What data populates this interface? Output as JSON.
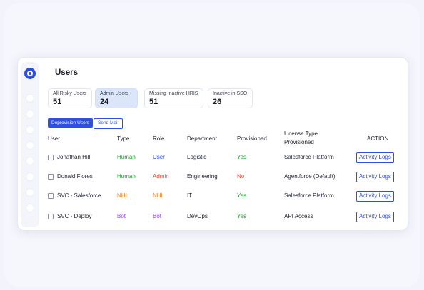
{
  "page": {
    "title": "Users"
  },
  "stats": [
    {
      "label": "All Risky Users",
      "value": "51"
    },
    {
      "label": "Admin Users",
      "value": "24"
    },
    {
      "label": "Missing Inactive HRIS",
      "value": "51"
    },
    {
      "label": "Inactive in SSO",
      "value": "26"
    }
  ],
  "actions": {
    "deprovision": "Deprovision Users",
    "send_mail": "Send Mail"
  },
  "table": {
    "headers": {
      "user": "User",
      "type": "Type",
      "role": "Role",
      "department": "Department",
      "provisioned": "Provisioned",
      "license_1": "License Type",
      "license_2": "Provisioned",
      "action": "ACTION"
    },
    "rows": [
      {
        "user": "Jonathan Hill",
        "type": "Human",
        "role": "User",
        "department": "Logistic",
        "provisioned": "Yes",
        "license": "Salesforce Platform",
        "action": "Activity Logs"
      },
      {
        "user": "Donald Flores",
        "type": "Human",
        "role": "Admin",
        "department": "Engineering",
        "provisioned": "No",
        "license": "Agentforce (Default)",
        "action": "Activity Logs"
      },
      {
        "user": "SVC - Salesforce",
        "type": "NHI",
        "role": "NHI",
        "department": "IT",
        "provisioned": "Yes",
        "license": "Salesforce Platform",
        "action": "Activity Logs"
      },
      {
        "user": "SVC - Deploy",
        "type": "Bot",
        "role": "Bot",
        "department": "DevOps",
        "provisioned": "Yes",
        "license": "API Access",
        "action": "Activity Logs"
      }
    ]
  },
  "colors": {
    "accent": "#2e4fe2",
    "yes": "#1a9b2b",
    "no": "#e8462d",
    "nhi": "#f07a10",
    "bot": "#8b44e0"
  }
}
